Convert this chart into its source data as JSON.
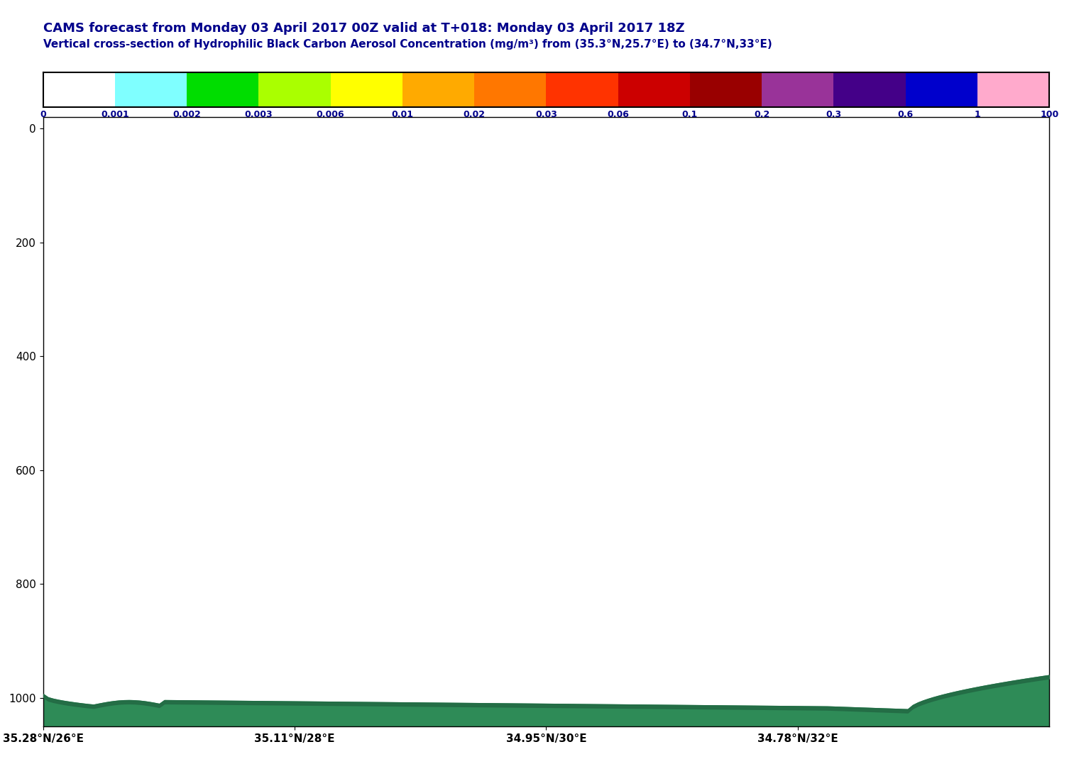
{
  "title_line1": "CAMS forecast from Monday 03 April 2017 00Z valid at T+018: Monday 03 April 2017 18Z",
  "title_line2": "Vertical cross-section of Hydrophilic Black Carbon Aerosol Concentration (mg/m³) from (35.3°N,25.7°E) to (34.7°N,33°E)",
  "title_color": "#00008B",
  "colorbar_tick_labels": [
    "0",
    "0.001",
    "0.002",
    "0.003",
    "0.006",
    "0.01",
    "0.02",
    "0.03",
    "0.06",
    "0.1",
    "0.2",
    "0.3",
    "0.6",
    "1",
    "100"
  ],
  "colorbar_colors": [
    "#ffffff",
    "#7fffff",
    "#00dd00",
    "#aaff00",
    "#ffff00",
    "#ffaa00",
    "#ff7700",
    "#ff3300",
    "#cc0000",
    "#990000",
    "#993399",
    "#440088",
    "#0000cc",
    "#ffaacc"
  ],
  "yticks": [
    0,
    200,
    400,
    600,
    800,
    1000
  ],
  "xtick_labels": [
    "35.28°N/26°E",
    "35.11°N/28°E",
    "34.95°N/30°E",
    "34.78°N/32°E"
  ],
  "xtick_positions": [
    0,
    0.25,
    0.5,
    0.75
  ],
  "filled_outer_color": "#2e8b57",
  "filled_inner_color": "#236b45",
  "bg_color": "#ffffff"
}
